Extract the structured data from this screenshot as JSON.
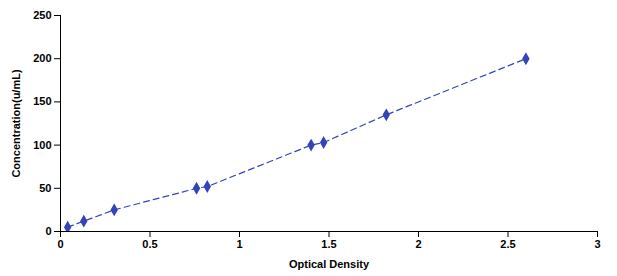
{
  "chart_data": {
    "type": "line",
    "xlabel": "Optical Density",
    "ylabel": "Concentration(u/mL)",
    "x": [
      0.04,
      0.13,
      0.3,
      0.76,
      0.82,
      1.4,
      1.47,
      1.82,
      2.6
    ],
    "values": [
      5,
      12,
      25,
      50,
      52,
      100,
      103,
      135,
      200
    ],
    "color": "#3344BB",
    "marker": "diamond",
    "line_style": "dashed",
    "xlim": [
      0,
      3
    ],
    "ylim": [
      0,
      250
    ],
    "xticks": [
      0,
      0.5,
      1,
      1.5,
      2,
      2.5,
      3
    ],
    "yticks": [
      0,
      50,
      100,
      150,
      200,
      250
    ],
    "grid": false
  }
}
